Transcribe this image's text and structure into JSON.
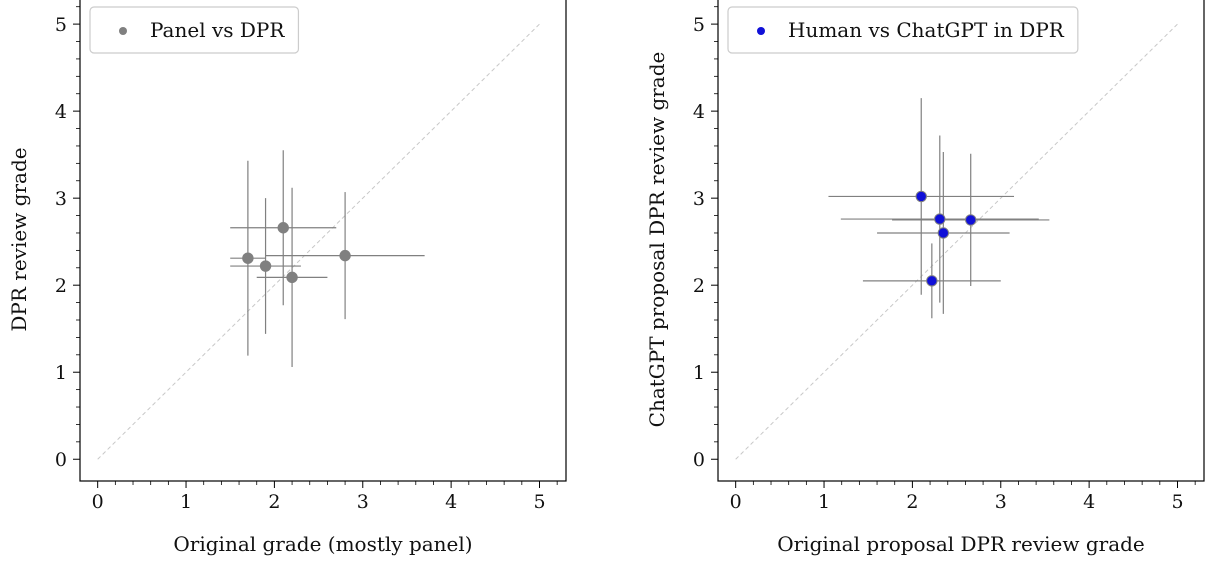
{
  "chart_data": [
    {
      "type": "scatter",
      "xlabel": "Original grade (mostly panel)",
      "ylabel": "DPR review grade",
      "xlim": [
        -0.2,
        5.3
      ],
      "ylim": [
        -0.25,
        5.3
      ],
      "xticks": [
        0,
        1,
        2,
        3,
        4,
        5
      ],
      "yticks": [
        0,
        1,
        2,
        3,
        4,
        5
      ],
      "reference_line": "y = x, dashed, light gray",
      "legend": {
        "placement": "top-left",
        "label": "Panel vs DPR"
      },
      "series": [
        {
          "name": "Panel vs DPR",
          "color": "#808080",
          "marker_edge": "#808080",
          "errorbar_color": "#808080",
          "points": [
            {
              "x": 1.7,
              "y": 2.31,
              "xerr": [
                0.2,
                0.2
              ],
              "yerr": [
                1.12,
                1.12
              ]
            },
            {
              "x": 1.9,
              "y": 2.22,
              "xerr": [
                0.4,
                0.4
              ],
              "yerr": [
                0.78,
                0.78
              ]
            },
            {
              "x": 2.1,
              "y": 2.66,
              "xerr": [
                0.6,
                0.6
              ],
              "yerr": [
                0.89,
                0.89
              ]
            },
            {
              "x": 2.2,
              "y": 2.09,
              "xerr": [
                0.4,
                0.4
              ],
              "yerr": [
                1.03,
                1.03
              ]
            },
            {
              "x": 2.8,
              "y": 2.34,
              "xerr": [
                0.9,
                0.9
              ],
              "yerr": [
                0.73,
                0.73
              ]
            }
          ]
        }
      ]
    },
    {
      "type": "scatter",
      "xlabel": "Original proposal DPR review grade",
      "ylabel": "ChatGPT proposal DPR review grade",
      "xlim": [
        -0.2,
        5.3
      ],
      "ylim": [
        -0.25,
        5.3
      ],
      "xticks": [
        0,
        1,
        2,
        3,
        4,
        5
      ],
      "yticks": [
        0,
        1,
        2,
        3,
        4,
        5
      ],
      "reference_line": "y = x, dashed, light gray",
      "legend": {
        "placement": "top-left",
        "label": "Human vs ChatGPT in DPR"
      },
      "series": [
        {
          "name": "Human vs ChatGPT in DPR",
          "color": "#1010d8",
          "marker_edge": "#808080",
          "errorbar_color": "#808080",
          "points": [
            {
              "x": 2.1,
              "y": 3.02,
              "xerr": [
                1.05,
                1.05
              ],
              "yerr": [
                1.13,
                1.13
              ]
            },
            {
              "x": 2.31,
              "y": 2.76,
              "xerr": [
                1.12,
                1.12
              ],
              "yerr": [
                0.96,
                0.96
              ]
            },
            {
              "x": 2.35,
              "y": 2.6,
              "xerr": [
                0.75,
                0.75
              ],
              "yerr": [
                0.93,
                0.93
              ]
            },
            {
              "x": 2.66,
              "y": 2.75,
              "xerr": [
                0.89,
                0.89
              ],
              "yerr": [
                0.76,
                0.76
              ]
            },
            {
              "x": 2.22,
              "y": 2.05,
              "xerr": [
                0.78,
                0.78
              ],
              "yerr": [
                0.43,
                0.43
              ]
            }
          ]
        }
      ]
    }
  ]
}
